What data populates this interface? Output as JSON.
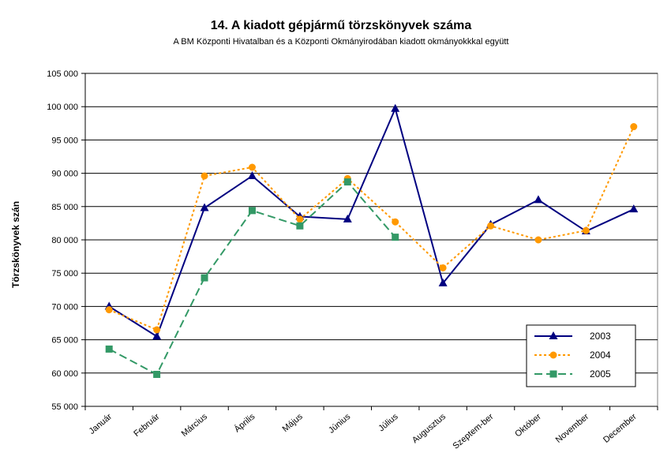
{
  "chart_data": {
    "type": "line",
    "title": "14. A  kiadott gépjármű  törzskönyvek száma",
    "subtitle": "A BM Központi Hivatalban és a Központi Okmányirodában kiadott okmányokkkal együtt",
    "xlabel": "",
    "ylabel": "Törzskönyvek szán",
    "ylim": [
      55000,
      105000
    ],
    "ytick_step": 5000,
    "ytick_labels": [
      "55 000",
      "60 000",
      "65 000",
      "70 000",
      "75 000",
      "80 000",
      "85 000",
      "90 000",
      "95 000",
      "100 000",
      "105 000"
    ],
    "grid": true,
    "legend_position": "bottom-right",
    "categories": [
      "Január",
      "Február",
      "Március",
      "Április",
      "Május",
      "Június",
      "Július",
      "Augusztus",
      "Szeptem-ber",
      "Október",
      "November",
      "December"
    ],
    "series": [
      {
        "name": "2003",
        "color": "#000080",
        "marker": "triangle",
        "dash": "solid",
        "values": [
          70000,
          65500,
          84800,
          89600,
          83500,
          83100,
          99700,
          73500,
          82300,
          86000,
          81300,
          84600
        ]
      },
      {
        "name": "2004",
        "color": "#ff9900",
        "marker": "circle",
        "dash": "dotted",
        "values": [
          69500,
          66500,
          89600,
          90900,
          83100,
          89200,
          82700,
          75800,
          82100,
          80000,
          81400,
          97000
        ]
      },
      {
        "name": "2005",
        "color": "#339966",
        "marker": "square",
        "dash": "dashed",
        "values": [
          63600,
          59800,
          74300,
          84400,
          82100,
          88700,
          80400,
          null,
          null,
          null,
          null,
          null
        ]
      }
    ]
  }
}
